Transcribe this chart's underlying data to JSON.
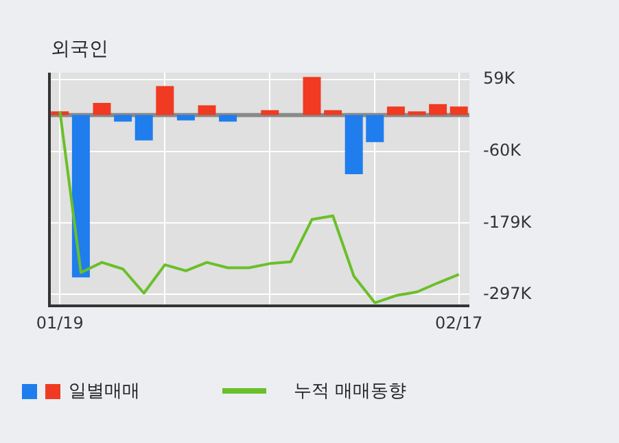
{
  "chart_data": {
    "type": "bar",
    "title": "외국인",
    "categories": [
      "01/19",
      null,
      null,
      null,
      null,
      null,
      null,
      null,
      null,
      null,
      null,
      null,
      null,
      null,
      null,
      null,
      null,
      null,
      null,
      "02/17"
    ],
    "series": [
      {
        "name": "일별매매",
        "values": [
          6,
          -269,
          20,
          -11,
          -42,
          48,
          -9,
          16,
          -11,
          0,
          8,
          0,
          63,
          8,
          -98,
          -45,
          14,
          6,
          18,
          14
        ],
        "colors": [
          "#f03a22",
          "#1f7ded",
          "#f03a22",
          "#1f7ded",
          "#1f7ded",
          "#f03a22",
          "#1f7ded",
          "#f03a22",
          "#1f7ded",
          "#f03a22",
          "#f03a22",
          "#f03a22",
          "#f03a22",
          "#f03a22",
          "#1f7ded",
          "#1f7ded",
          "#f03a22",
          "#f03a22",
          "#f03a22",
          "#f03a22"
        ]
      },
      {
        "name": "누적 매매동향",
        "type": "line",
        "color": "#6abf2a",
        "values": [
          6,
          -261,
          -244,
          -255,
          -295,
          -248,
          -258,
          -244,
          -253,
          -253,
          -246,
          -243,
          -173,
          -167,
          -267,
          -311,
          -299,
          -293,
          -278,
          -264
        ]
      }
    ],
    "ylim": [
      -316,
      70
    ],
    "yticks": [
      {
        "value": 59,
        "label": "59K"
      },
      {
        "value": -60,
        "label": "-60K"
      },
      {
        "value": -179,
        "label": "-179K"
      },
      {
        "value": -297,
        "label": "-297K"
      }
    ],
    "ref_lines": [
      {
        "axis": "y",
        "value": 0,
        "color": "#8a8a8a"
      }
    ],
    "grid": true,
    "legend": "bottom",
    "marker": "none"
  }
}
